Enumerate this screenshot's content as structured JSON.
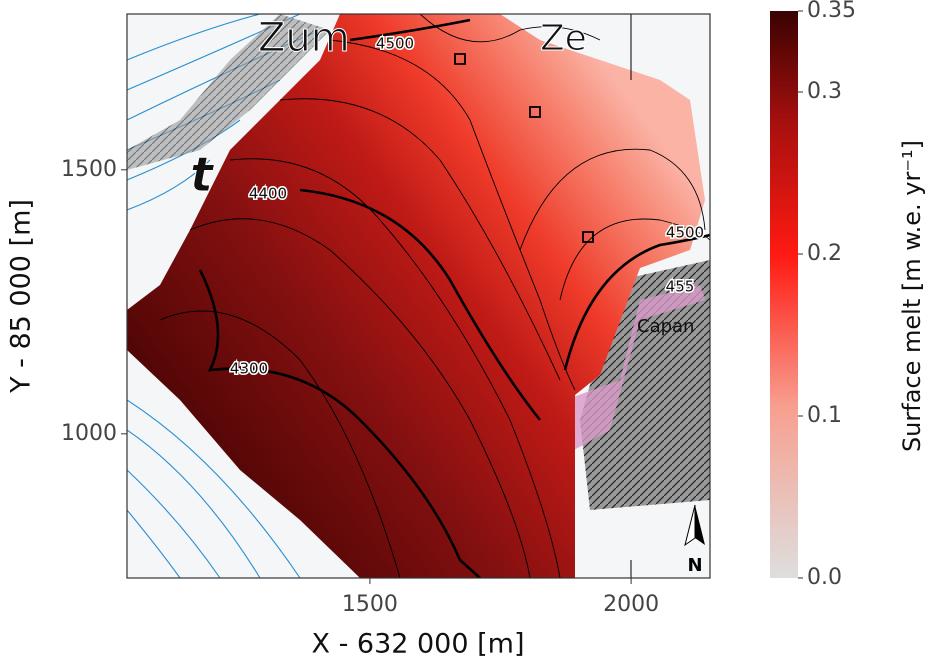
{
  "chart_data": {
    "type": "heatmap",
    "xlabel": "X - 632 000 [m]",
    "ylabel": "Y - 85 000 [m]",
    "xlim": [
      1035,
      2151
    ],
    "ylim": [
      727,
      1795
    ],
    "xticks": [
      1500,
      2000
    ],
    "yticks": [
      1000,
      1500
    ],
    "colorbar": {
      "label": "Surface melt [m w.e. yr⁻¹]",
      "lim": [
        0,
        0.35
      ],
      "ticks": [
        {
          "value": 0,
          "label": "0.0"
        },
        0.1,
        0.2,
        0.3,
        0.35
      ]
    },
    "contour_labels": [
      4500,
      4400,
      4300,
      4500,
      455
    ],
    "map_labels": [
      "Zum",
      "Ze",
      "t",
      "Capan"
    ]
  }
}
